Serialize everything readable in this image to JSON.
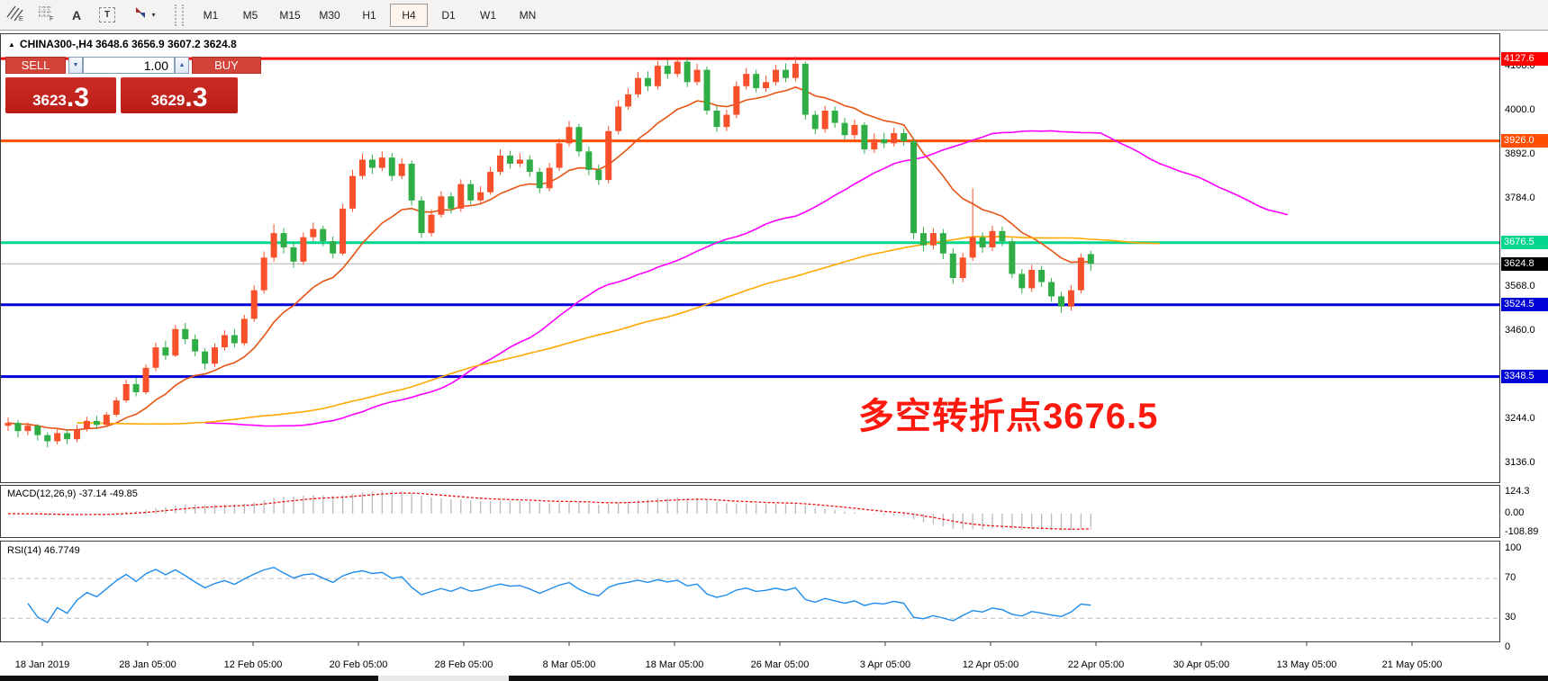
{
  "toolbar": {
    "text_tool_glyph": "A",
    "textbox_tool_glyph": "T",
    "dropdown_caret": "▾",
    "timeframes": [
      "M1",
      "M5",
      "M15",
      "M30",
      "H1",
      "H4",
      "D1",
      "W1",
      "MN"
    ],
    "active_timeframe": "H4"
  },
  "chart_header": {
    "collapse_glyph": "▲",
    "symbol_line": "CHINA300-,H4  3648.6 3656.9 3607.2 3624.8"
  },
  "trade_panel": {
    "sell_label": "SELL",
    "buy_label": "BUY",
    "volume": "1.00",
    "spinner_down_glyph": "▼",
    "spinner_up_glyph": "▲",
    "sell_price_main": "3623",
    "sell_price_frac": ".3",
    "buy_price_main": "3629",
    "buy_price_frac": ".3"
  },
  "annotation": {
    "text": "多空转折点3676.5",
    "color": "#fe190e"
  },
  "chart_data": {
    "type": "candlestick",
    "symbol": "CHINA300-",
    "timeframe": "H4",
    "ohlc_current": {
      "open": 3648.6,
      "high": 3656.9,
      "low": 3607.2,
      "close": 3624.8
    },
    "up_color": "#f8502b",
    "down_color": "#2fae47",
    "candles": [
      [
        3228,
        3248,
        3215,
        3235
      ],
      [
        3235,
        3242,
        3200,
        3215
      ],
      [
        3215,
        3236,
        3205,
        3228
      ],
      [
        3228,
        3232,
        3192,
        3205
      ],
      [
        3205,
        3212,
        3175,
        3190
      ],
      [
        3190,
        3220,
        3182,
        3210
      ],
      [
        3210,
        3218,
        3183,
        3195
      ],
      [
        3195,
        3230,
        3188,
        3220
      ],
      [
        3220,
        3250,
        3214,
        3240
      ],
      [
        3240,
        3252,
        3220,
        3230
      ],
      [
        3230,
        3262,
        3224,
        3255
      ],
      [
        3255,
        3298,
        3250,
        3290
      ],
      [
        3290,
        3340,
        3285,
        3330
      ],
      [
        3330,
        3345,
        3300,
        3310
      ],
      [
        3310,
        3378,
        3305,
        3370
      ],
      [
        3370,
        3432,
        3362,
        3420
      ],
      [
        3420,
        3436,
        3390,
        3400
      ],
      [
        3400,
        3475,
        3396,
        3465
      ],
      [
        3465,
        3480,
        3428,
        3440
      ],
      [
        3440,
        3452,
        3398,
        3410
      ],
      [
        3410,
        3418,
        3366,
        3380
      ],
      [
        3380,
        3430,
        3372,
        3420
      ],
      [
        3420,
        3462,
        3412,
        3450
      ],
      [
        3450,
        3465,
        3420,
        3430
      ],
      [
        3430,
        3500,
        3424,
        3490
      ],
      [
        3490,
        3572,
        3482,
        3560
      ],
      [
        3560,
        3655,
        3552,
        3640
      ],
      [
        3640,
        3722,
        3630,
        3700
      ],
      [
        3700,
        3712,
        3650,
        3665
      ],
      [
        3665,
        3678,
        3615,
        3630
      ],
      [
        3630,
        3702,
        3622,
        3690
      ],
      [
        3690,
        3726,
        3680,
        3710
      ],
      [
        3710,
        3718,
        3668,
        3680
      ],
      [
        3680,
        3692,
        3638,
        3650
      ],
      [
        3650,
        3772,
        3645,
        3760
      ],
      [
        3760,
        3855,
        3752,
        3840
      ],
      [
        3840,
        3895,
        3832,
        3880
      ],
      [
        3880,
        3893,
        3845,
        3860
      ],
      [
        3860,
        3900,
        3852,
        3885
      ],
      [
        3885,
        3896,
        3828,
        3840
      ],
      [
        3840,
        3884,
        3832,
        3870
      ],
      [
        3870,
        3878,
        3768,
        3780
      ],
      [
        3780,
        3790,
        3688,
        3700
      ],
      [
        3700,
        3758,
        3692,
        3745
      ],
      [
        3745,
        3802,
        3738,
        3790
      ],
      [
        3790,
        3800,
        3748,
        3760
      ],
      [
        3760,
        3832,
        3752,
        3820
      ],
      [
        3820,
        3830,
        3770,
        3780
      ],
      [
        3780,
        3815,
        3772,
        3800
      ],
      [
        3800,
        3862,
        3794,
        3850
      ],
      [
        3850,
        3905,
        3842,
        3890
      ],
      [
        3890,
        3902,
        3858,
        3870
      ],
      [
        3870,
        3896,
        3862,
        3880
      ],
      [
        3880,
        3890,
        3838,
        3850
      ],
      [
        3850,
        3860,
        3798,
        3810
      ],
      [
        3810,
        3872,
        3802,
        3860
      ],
      [
        3860,
        3932,
        3852,
        3920
      ],
      [
        3920,
        3975,
        3912,
        3960
      ],
      [
        3960,
        3968,
        3888,
        3900
      ],
      [
        3900,
        3912,
        3842,
        3855
      ],
      [
        3855,
        3868,
        3818,
        3830
      ],
      [
        3830,
        3962,
        3822,
        3950
      ],
      [
        3950,
        4026,
        3942,
        4010
      ],
      [
        4010,
        4055,
        4002,
        4040
      ],
      [
        4040,
        4095,
        4032,
        4080
      ],
      [
        4080,
        4096,
        4048,
        4060
      ],
      [
        4060,
        4122,
        4052,
        4110
      ],
      [
        4110,
        4124,
        4078,
        4090
      ],
      [
        4090,
        4132,
        4082,
        4120
      ],
      [
        4120,
        4128,
        4058,
        4070
      ],
      [
        4070,
        4115,
        4062,
        4100
      ],
      [
        4100,
        4108,
        3990,
        4000
      ],
      [
        4000,
        4012,
        3948,
        3960
      ],
      [
        3960,
        4002,
        3950,
        3990
      ],
      [
        3990,
        4072,
        3982,
        4060
      ],
      [
        4060,
        4105,
        4052,
        4090
      ],
      [
        4090,
        4100,
        4045,
        4055
      ],
      [
        4055,
        4086,
        4046,
        4070
      ],
      [
        4070,
        4112,
        4062,
        4100
      ],
      [
        4100,
        4116,
        4070,
        4080
      ],
      [
        4080,
        4133,
        4072,
        4115
      ],
      [
        4115,
        4120,
        3978,
        3990
      ],
      [
        3990,
        4000,
        3942,
        3955
      ],
      [
        3955,
        4012,
        3946,
        4000
      ],
      [
        4000,
        4010,
        3958,
        3970
      ],
      [
        3970,
        3982,
        3928,
        3940
      ],
      [
        3940,
        3978,
        3930,
        3965
      ],
      [
        3965,
        3972,
        3894,
        3905
      ],
      [
        3905,
        3944,
        3896,
        3930
      ],
      [
        3930,
        3946,
        3908,
        3920
      ],
      [
        3920,
        3958,
        3912,
        3945
      ],
      [
        3945,
        3956,
        3914,
        3925
      ],
      [
        3925,
        3932,
        3685,
        3700
      ],
      [
        3700,
        3715,
        3655,
        3670
      ],
      [
        3670,
        3712,
        3660,
        3700
      ],
      [
        3700,
        3710,
        3636,
        3650
      ],
      [
        3650,
        3662,
        3576,
        3590
      ],
      [
        3590,
        3652,
        3580,
        3640
      ],
      [
        3640,
        3810,
        3632,
        3690
      ],
      [
        3690,
        3702,
        3652,
        3665
      ],
      [
        3665,
        3718,
        3656,
        3705
      ],
      [
        3705,
        3716,
        3668,
        3680
      ],
      [
        3680,
        3688,
        3590,
        3600
      ],
      [
        3600,
        3612,
        3552,
        3565
      ],
      [
        3565,
        3622,
        3556,
        3610
      ],
      [
        3610,
        3620,
        3568,
        3580
      ],
      [
        3580,
        3590,
        3532,
        3545
      ],
      [
        3545,
        3556,
        3505,
        3520
      ],
      [
        3520,
        3572,
        3510,
        3560
      ],
      [
        3560,
        3650,
        3552,
        3640
      ],
      [
        3648.6,
        3656.9,
        3607.2,
        3624.8
      ]
    ],
    "moving_averages": [
      {
        "name": "fast-ma",
        "period": 14,
        "shift": 0,
        "color": "#e65413"
      },
      {
        "name": "mid-ma",
        "period": 40,
        "shift": 20,
        "color": "#ff00ff"
      },
      {
        "name": "slow-ma",
        "period": 130,
        "shift": 7,
        "color": "#ffa800"
      }
    ],
    "hlines": [
      {
        "price": 4127.6,
        "label": "4127.6",
        "color": "#fe0000"
      },
      {
        "price": 3926.0,
        "label": "3926.0",
        "color": "#ff4e00"
      },
      {
        "price": 3676.5,
        "label": "3676.5",
        "color": "#00d68d"
      },
      {
        "price": 3524.5,
        "label": "3524.5",
        "color": "#0000d9"
      },
      {
        "price": 3348.5,
        "label": "3348.5",
        "color": "#0000d9"
      }
    ],
    "current_price": {
      "value": 3624.8,
      "label": "3624.8",
      "line_color": "#b0b0b0",
      "badge_color": "#000000"
    },
    "y_ticks": [
      "4108.0",
      "4000.0",
      "3892.0",
      "3784.0",
      "3568.0",
      "3460.0",
      "3244.0",
      "3136.0"
    ],
    "x_labels": [
      "18 Jan 2019",
      "28 Jan 05:00",
      "12 Feb 05:00",
      "20 Feb 05:00",
      "28 Feb 05:00",
      "8 Mar 05:00",
      "18 Mar 05:00",
      "26 Mar 05:00",
      "3 Apr 05:00",
      "12 Apr 05:00",
      "22 Apr 05:00",
      "30 Apr 05:00",
      "13 May 05:00",
      "21 May 05:00"
    ],
    "indicators": [
      {
        "name": "MACD",
        "label": "MACD(12,26,9) -37.14 -49.85",
        "params": [
          12,
          26,
          9
        ],
        "current_values": [
          "-37.14",
          "-49.85"
        ],
        "y_ticks": [
          124.3,
          0,
          -108.89
        ],
        "y_tick_labels": [
          "124.3",
          "0.00",
          "-108.89"
        ],
        "histogram_color": "#b9b9b9",
        "signal_color": "#ee1111"
      },
      {
        "name": "RSI",
        "label": "RSI(14) 46.7749",
        "period": 14,
        "current": 46.7749,
        "levels": [
          70,
          30
        ],
        "y_ticks": [
          100,
          70,
          30,
          0
        ],
        "y_tick_labels": [
          "100",
          "70",
          "30",
          "0"
        ],
        "line_color": "#1f8ceb"
      }
    ]
  }
}
